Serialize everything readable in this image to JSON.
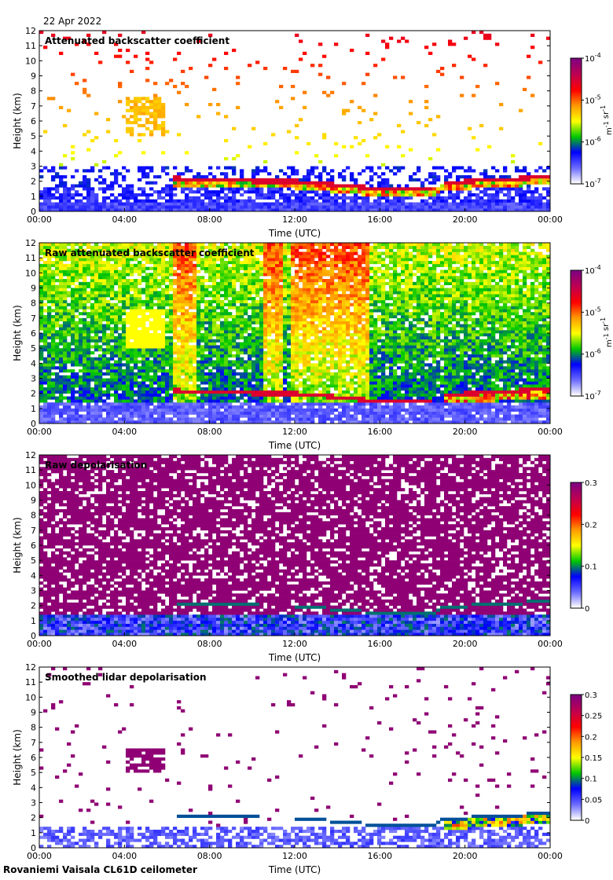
{
  "date": "22 Apr 2022",
  "footer": "Rovaniemi Vaisala CL61D ceilometer",
  "colors": {
    "scale": [
      "#ffffff",
      "#6a6aff",
      "#0000ff",
      "#00c800",
      "#ffff00",
      "#ff9a00",
      "#ff0000",
      "#c00050",
      "#800080"
    ]
  },
  "chart_data": [
    {
      "type": "heatmap",
      "title": "Attenuated backscatter coefficient",
      "xlabel": "Time (UTC)",
      "ylabel": "Height (km)",
      "x_ticks": [
        "00:00",
        "04:00",
        "08:00",
        "12:00",
        "16:00",
        "20:00",
        "00:00"
      ],
      "y_ticks": [
        "0",
        "1",
        "2",
        "3",
        "4",
        "5",
        "6",
        "7",
        "8",
        "9",
        "10",
        "11",
        "12"
      ],
      "xlim_hours": [
        0,
        24
      ],
      "ylim_km": [
        0,
        12
      ],
      "colorbar": {
        "scale": "log",
        "ticks": [
          "10^-7",
          "10^-6",
          "10^-5",
          "10^-4"
        ],
        "units": "m^-1 sr^-1"
      },
      "features": {
        "cloud_base_km": [
          [
            6.2,
            2.2
          ],
          [
            8,
            2.1
          ],
          [
            10.5,
            2.0
          ],
          [
            12,
            2.0
          ],
          [
            16,
            1.5
          ],
          [
            18.5,
            1.5
          ],
          [
            19,
            1.9
          ],
          [
            24,
            2.3
          ]
        ],
        "elevated_layer": {
          "x_hours": [
            4,
            6
          ],
          "y_km": [
            5,
            7.5
          ]
        }
      }
    },
    {
      "type": "heatmap",
      "title": "Raw attenuated backscatter coefficient",
      "xlabel": "Time (UTC)",
      "ylabel": "Height (km)",
      "x_ticks": [
        "00:00",
        "04:00",
        "08:00",
        "12:00",
        "16:00",
        "20:00",
        "00:00"
      ],
      "y_ticks": [
        "0",
        "1",
        "2",
        "3",
        "4",
        "5",
        "6",
        "7",
        "8",
        "9",
        "10",
        "11",
        "12"
      ],
      "xlim_hours": [
        0,
        24
      ],
      "ylim_km": [
        0,
        12
      ],
      "colorbar": {
        "scale": "log",
        "ticks": [
          "10^-7",
          "10^-6",
          "10^-5",
          "10^-4"
        ],
        "units": "m^-1 sr^-1"
      }
    },
    {
      "type": "heatmap",
      "title": "Raw depolarisation",
      "xlabel": "Time (UTC)",
      "ylabel": "Height (km)",
      "x_ticks": [
        "00:00",
        "04:00",
        "08:00",
        "12:00",
        "16:00",
        "20:00",
        "00:00"
      ],
      "y_ticks": [
        "0",
        "1",
        "2",
        "3",
        "4",
        "5",
        "6",
        "7",
        "8",
        "9",
        "10",
        "11",
        "12"
      ],
      "xlim_hours": [
        0,
        24
      ],
      "ylim_km": [
        0,
        12
      ],
      "colorbar": {
        "scale": "linear",
        "ticks": [
          "0",
          "0.1",
          "0.2",
          "0.3"
        ]
      }
    },
    {
      "type": "heatmap",
      "title": "Smoothed lidar depolarisation",
      "xlabel": "Time (UTC)",
      "ylabel": "Height (km)",
      "x_ticks": [
        "00:00",
        "04:00",
        "08:00",
        "12:00",
        "16:00",
        "20:00",
        "00:00"
      ],
      "y_ticks": [
        "0",
        "1",
        "2",
        "3",
        "4",
        "5",
        "6",
        "7",
        "8",
        "9",
        "10",
        "11",
        "12"
      ],
      "xlim_hours": [
        0,
        24
      ],
      "ylim_km": [
        0,
        12
      ],
      "colorbar": {
        "scale": "linear",
        "ticks": [
          "0",
          "0.05",
          "0.1",
          "0.15",
          "0.2",
          "0.25",
          "0.3"
        ]
      }
    }
  ]
}
